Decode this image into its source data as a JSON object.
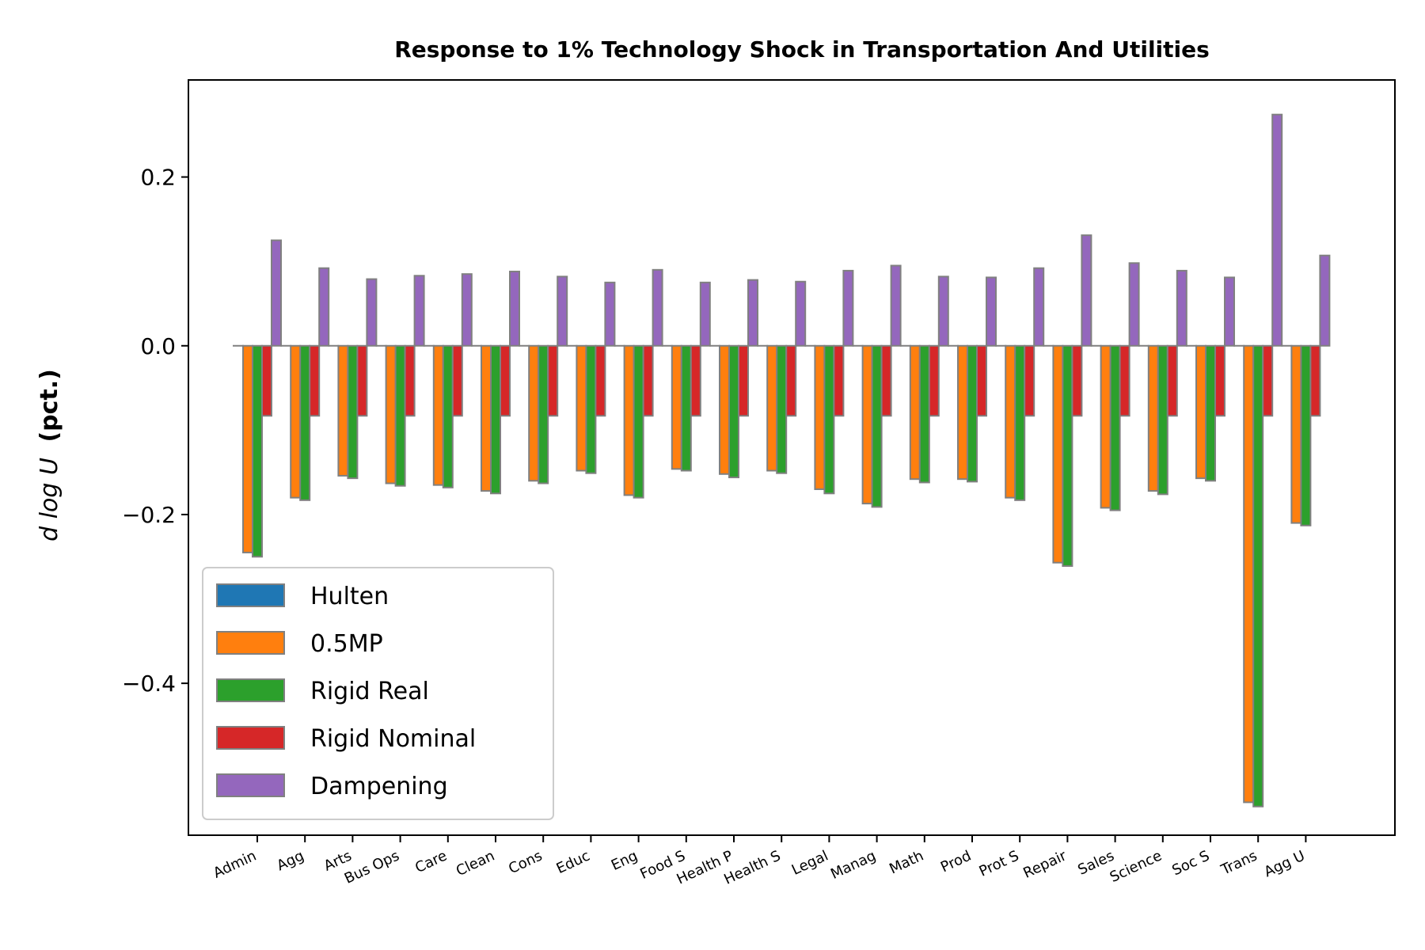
{
  "chart_data": {
    "type": "bar",
    "title": "Response to 1% Technology Shock in Transportation And Utilities",
    "ylabel_math": "d log U",
    "ylabel_unit": "(pct.)",
    "xlabel": "",
    "ylim": [
      -0.58,
      0.315
    ],
    "yticks": [
      0.2,
      0.0,
      -0.2,
      -0.4
    ],
    "ytick_labels": [
      "0.2",
      "0.0",
      "−0.2",
      "−0.4"
    ],
    "grid": false,
    "legend_position": "lower-left",
    "categories": [
      "Admin",
      "Agg",
      "Arts",
      "Bus Ops",
      "Care",
      "Clean",
      "Cons",
      "Educ",
      "Eng",
      "Food S",
      "Health P",
      "Health S",
      "Legal",
      "Manag",
      "Math",
      "Prod",
      "Prot S",
      "Repair",
      "Sales",
      "Science",
      "Soc S",
      "Trans",
      "Agg U"
    ],
    "series": [
      {
        "name": "Hulten",
        "color": "#1f77b4",
        "values": [
          0,
          0,
          0,
          0,
          0,
          0,
          0,
          0,
          0,
          0,
          0,
          0,
          0,
          0,
          0,
          0,
          0,
          0,
          0,
          0,
          0,
          0,
          0
        ]
      },
      {
        "name": "0.5MP",
        "color": "#ff7f0e",
        "values": [
          -0.245,
          -0.18,
          -0.154,
          -0.163,
          -0.165,
          -0.172,
          -0.16,
          -0.148,
          -0.177,
          -0.146,
          -0.152,
          -0.148,
          -0.17,
          -0.187,
          -0.158,
          -0.158,
          -0.18,
          -0.257,
          -0.192,
          -0.172,
          -0.157,
          -0.541,
          -0.21
        ]
      },
      {
        "name": "Rigid Real",
        "color": "#2ca02c",
        "values": [
          -0.25,
          -0.183,
          -0.157,
          -0.166,
          -0.168,
          -0.175,
          -0.163,
          -0.151,
          -0.18,
          -0.148,
          -0.156,
          -0.151,
          -0.175,
          -0.191,
          -0.162,
          -0.161,
          -0.183,
          -0.261,
          -0.195,
          -0.176,
          -0.16,
          -0.546,
          -0.213
        ]
      },
      {
        "name": "Rigid Nominal",
        "color": "#d62728",
        "values": [
          -0.083,
          -0.083,
          -0.083,
          -0.083,
          -0.083,
          -0.083,
          -0.083,
          -0.083,
          -0.083,
          -0.083,
          -0.083,
          -0.083,
          -0.083,
          -0.083,
          -0.083,
          -0.083,
          -0.083,
          -0.083,
          -0.083,
          -0.083,
          -0.083,
          -0.083,
          -0.083
        ]
      },
      {
        "name": "Dampening",
        "color": "#9467bd",
        "values": [
          0.125,
          0.092,
          0.079,
          0.083,
          0.085,
          0.088,
          0.082,
          0.075,
          0.09,
          0.075,
          0.078,
          0.076,
          0.089,
          0.095,
          0.082,
          0.081,
          0.092,
          0.131,
          0.098,
          0.089,
          0.081,
          0.274,
          0.107
        ]
      }
    ]
  }
}
